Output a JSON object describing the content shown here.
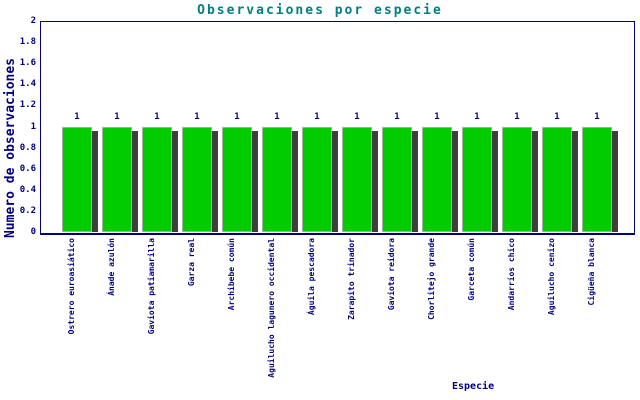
{
  "chart_data": {
    "type": "bar",
    "title": "Observaciones por especie",
    "xlabel": "Especie",
    "ylabel": "Numero de observaciones",
    "categories": [
      "Ostrero euroasiático",
      "Ánade azulón",
      "Gaviota patiamarilla",
      "Garza real",
      "Archibebe común",
      "Aguilucho lagunero occidental",
      "Águila pescadora",
      "Zarapito trinador",
      "Gaviota reidora",
      "Chorlitejo grande",
      "Garceta común",
      "Andarríos chico",
      "Aguilucho cenizo",
      "Cigüeña blanca"
    ],
    "values": [
      1,
      1,
      1,
      1,
      1,
      1,
      1,
      1,
      1,
      1,
      1,
      1,
      1,
      1
    ],
    "bar_value_labels": [
      "1",
      "1",
      "1",
      "1",
      "1",
      "1",
      "1",
      "1",
      "1",
      "1",
      "1",
      "1",
      "1",
      "1"
    ],
    "ylim": [
      0,
      2
    ],
    "yticks": [
      0,
      0.2,
      0.4,
      0.6,
      0.8,
      1,
      1.2,
      1.4,
      1.6,
      1.8,
      2
    ],
    "ytick_labels": [
      "0",
      "0.2",
      "0.4",
      "0.6",
      "0.8",
      "1",
      "1.2",
      "1.4",
      "1.6",
      "1.8",
      "2"
    ],
    "grid": true,
    "legend": "none",
    "colors": {
      "bar_fill": "#00cc00",
      "bar_border": "#aaaaaa",
      "bar_shadow": "#3f3f3f",
      "axis": "#000080",
      "grid": "#000080",
      "tick_text": "#000080",
      "title_text": "#008080",
      "background": "#ffffff"
    }
  }
}
